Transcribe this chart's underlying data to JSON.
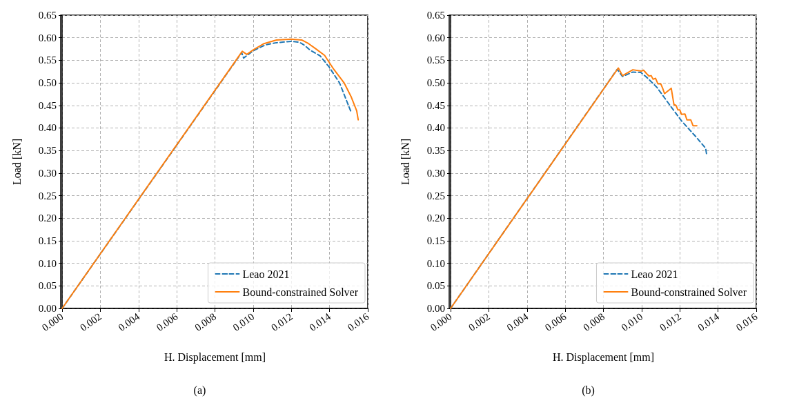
{
  "chart_data": [
    {
      "type": "line",
      "xlabel": "H. Displacement [mm]",
      "ylabel": "Load [kN]",
      "annotations": [
        "(a)"
      ],
      "grid": true,
      "legend": "bottom right",
      "marker": "none",
      "xlim": [
        0,
        0.016
      ],
      "xticks": [
        {
          "value": 0,
          "label": "0.000"
        },
        {
          "value": 0.002,
          "label": "0.002"
        },
        {
          "value": 0.004,
          "label": "0.004"
        },
        {
          "value": 0.006,
          "label": "0.006"
        },
        {
          "value": 0.008,
          "label": "0.008"
        },
        {
          "value": 0.01,
          "label": "0.010"
        },
        {
          "value": 0.012,
          "label": "0.012"
        },
        {
          "value": 0.014,
          "label": "0.014"
        },
        {
          "value": 0.016,
          "label": "0.016"
        }
      ],
      "ylim": [
        0,
        0.65
      ],
      "yticks": [
        {
          "value": 0,
          "label": "0.00"
        },
        {
          "value": 0.05,
          "label": "0.05"
        },
        {
          "value": 0.1,
          "label": "0.10"
        },
        {
          "value": 0.15,
          "label": "0.15"
        },
        {
          "value": 0.2,
          "label": "0.20"
        },
        {
          "value": 0.25,
          "label": "0.25"
        },
        {
          "value": 0.3,
          "label": "0.30"
        },
        {
          "value": 0.35,
          "label": "0.35"
        },
        {
          "value": 0.4,
          "label": "0.40"
        },
        {
          "value": 0.45,
          "label": "0.45"
        },
        {
          "value": 0.5,
          "label": "0.50"
        },
        {
          "value": 0.55,
          "label": "0.55"
        },
        {
          "value": 0.6,
          "label": "0.60"
        },
        {
          "value": 0.65,
          "label": "0.65"
        }
      ],
      "series": [
        {
          "name": "Leao 2021",
          "color": "#1f77b4",
          "line_style": "dashed",
          "x": [
            0,
            0.0094,
            0.0095,
            0.01,
            0.01063,
            0.01122,
            0.012,
            0.01242,
            0.01266,
            0.013,
            0.0135,
            0.01398,
            0.01452,
            0.01512
          ],
          "values": [
            0,
            0.567,
            0.555,
            0.571,
            0.584,
            0.589,
            0.592,
            0.59,
            0.584,
            0.572,
            0.56,
            0.535,
            0.5,
            0.436
          ]
        },
        {
          "name": "Bound-constrained Solver",
          "color": "#ff7f0e",
          "line_style": "solid",
          "x": [
            0,
            0.00943,
            0.00967,
            0.01,
            0.01057,
            0.01122,
            0.012,
            0.01254,
            0.0129,
            0.01326,
            0.01374,
            0.01422,
            0.01476,
            0.01512,
            0.01542,
            0.0155
          ],
          "values": [
            0,
            0.57,
            0.563,
            0.573,
            0.587,
            0.595,
            0.597,
            0.595,
            0.587,
            0.576,
            0.561,
            0.53,
            0.5,
            0.47,
            0.438,
            0.418
          ]
        }
      ]
    },
    {
      "type": "line",
      "xlabel": "H. Displacement [mm]",
      "ylabel": "Load [kN]",
      "annotations": [
        "(b)"
      ],
      "grid": true,
      "legend": "bottom right",
      "marker": "none",
      "xlim": [
        0,
        0.016
      ],
      "xticks": [
        {
          "value": 0,
          "label": "0.000"
        },
        {
          "value": 0.002,
          "label": "0.002"
        },
        {
          "value": 0.004,
          "label": "0.004"
        },
        {
          "value": 0.006,
          "label": "0.006"
        },
        {
          "value": 0.008,
          "label": "0.008"
        },
        {
          "value": 0.01,
          "label": "0.010"
        },
        {
          "value": 0.012,
          "label": "0.012"
        },
        {
          "value": 0.014,
          "label": "0.014"
        },
        {
          "value": 0.016,
          "label": "0.016"
        }
      ],
      "ylim": [
        0,
        0.65
      ],
      "yticks": [
        {
          "value": 0,
          "label": "0.00"
        },
        {
          "value": 0.05,
          "label": "0.05"
        },
        {
          "value": 0.1,
          "label": "0.10"
        },
        {
          "value": 0.15,
          "label": "0.15"
        },
        {
          "value": 0.2,
          "label": "0.20"
        },
        {
          "value": 0.25,
          "label": "0.25"
        },
        {
          "value": 0.3,
          "label": "0.30"
        },
        {
          "value": 0.35,
          "label": "0.35"
        },
        {
          "value": 0.4,
          "label": "0.40"
        },
        {
          "value": 0.45,
          "label": "0.45"
        },
        {
          "value": 0.5,
          "label": "0.50"
        },
        {
          "value": 0.55,
          "label": "0.55"
        },
        {
          "value": 0.6,
          "label": "0.60"
        },
        {
          "value": 0.65,
          "label": "0.65"
        }
      ],
      "series": [
        {
          "name": "Leao 2021",
          "color": "#1f77b4",
          "line_style": "dashed",
          "x": [
            0,
            0.00872,
            0.009,
            0.00954,
            0.00996,
            0.0103,
            0.0108,
            0.0114,
            0.0121,
            0.01281,
            0.01335,
            0.0134
          ],
          "values": [
            0,
            0.53,
            0.514,
            0.524,
            0.523,
            0.511,
            0.49,
            0.455,
            0.415,
            0.382,
            0.355,
            0.342
          ]
        },
        {
          "name": "Bound-constrained Solver",
          "color": "#ff7f0e",
          "line_style": "solid",
          "x": [
            0,
            0.00878,
            0.009,
            0.00954,
            0.00998,
            0.0101,
            0.01027,
            0.01039,
            0.0105,
            0.0106,
            0.01073,
            0.01085,
            0.011,
            0.0111,
            0.0112,
            0.01155,
            0.01169,
            0.0118,
            0.0119,
            0.012,
            0.01209,
            0.01227,
            0.01237,
            0.01257,
            0.01269,
            0.01289
          ],
          "values": [
            0,
            0.533,
            0.516,
            0.529,
            0.526,
            0.528,
            0.52,
            0.515,
            0.516,
            0.508,
            0.51,
            0.498,
            0.498,
            0.488,
            0.476,
            0.488,
            0.452,
            0.45,
            0.44,
            0.44,
            0.43,
            0.431,
            0.418,
            0.418,
            0.405,
            0.405
          ]
        }
      ]
    }
  ]
}
